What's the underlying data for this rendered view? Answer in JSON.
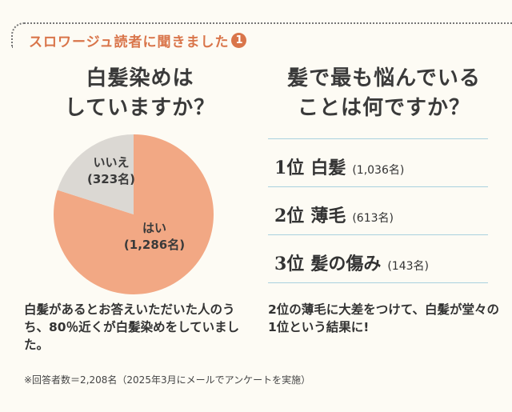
{
  "header": {
    "title": "スロワージュ読者に聞きました",
    "number": "1"
  },
  "q1": {
    "lines": [
      "白髪染めは",
      "していますか？"
    ]
  },
  "q2": {
    "lines": [
      "髪で最も悩んでいる",
      "ことは何ですか？"
    ]
  },
  "chart_data": {
    "type": "pie",
    "slices": [
      {
        "label": "はい",
        "value": 1286,
        "value_text": "(1,286名)",
        "color": "#f2a884"
      },
      {
        "label": "いいえ",
        "value": 323,
        "value_text": "(323名)",
        "color": "#dbd8d3"
      }
    ]
  },
  "ranking": [
    {
      "rank": "1位",
      "name": "白髪",
      "count": "(1,036名)"
    },
    {
      "rank": "2位",
      "name": "薄毛",
      "count": "(613名)"
    },
    {
      "rank": "3位",
      "name": "髪の傷み",
      "count": "(143名)"
    }
  ],
  "left_text": "白髪があるとお答えいただいた人のうち、80％近くが白髪染めをしていました。",
  "right_text": "2位の薄毛に大差をつけて、白髪が堂々の1位という結果に!",
  "footnote": "※回答者数＝2,208名（2025年3月にメールでアンケートを実施）"
}
